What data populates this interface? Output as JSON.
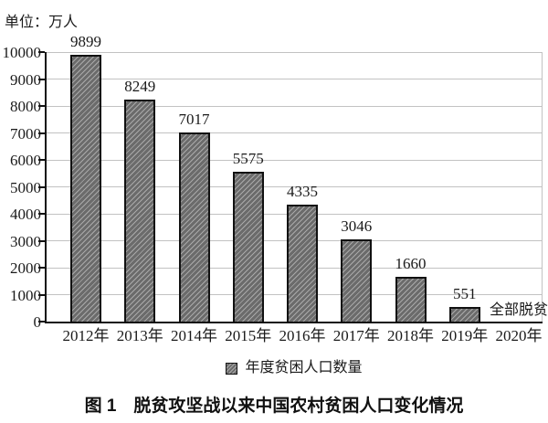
{
  "unit_label": "单位：万人",
  "caption": "图 1　脱贫攻坚战以来中国农村贫困人口变化情况",
  "legend": {
    "marker": "hatched-square",
    "label": "年度贫困人口数量"
  },
  "colors": {
    "bar_fill": "#6b6b6b",
    "bar_hatch": "#dcdcdc",
    "bar_border": "#111111",
    "gridline": "#c2c2c2",
    "axis": "#111111",
    "text": "#1a1a1a"
  },
  "chart_data": {
    "type": "bar",
    "title": "图 1　脱贫攻坚战以来中国农村贫困人口变化情况",
    "unit": "万人",
    "categories": [
      "2012年",
      "2013年",
      "2014年",
      "2015年",
      "2016年",
      "2017年",
      "2018年",
      "2019年",
      "2020年"
    ],
    "values": [
      9899,
      8249,
      7017,
      5575,
      4335,
      3046,
      1660,
      551,
      null
    ],
    "bar_labels": [
      "9899",
      "8249",
      "7017",
      "5575",
      "4335",
      "3046",
      "1660",
      "551",
      ""
    ],
    "annotations": [
      {
        "category": "2020年",
        "text": "全部脱贫"
      }
    ],
    "xlabel": "",
    "ylabel": "",
    "ylim": [
      0,
      10000
    ],
    "ytick_step": 1000,
    "grid": true,
    "hatch": "/",
    "legend": [
      "年度贫困人口数量"
    ],
    "legend_position": "bottom"
  }
}
